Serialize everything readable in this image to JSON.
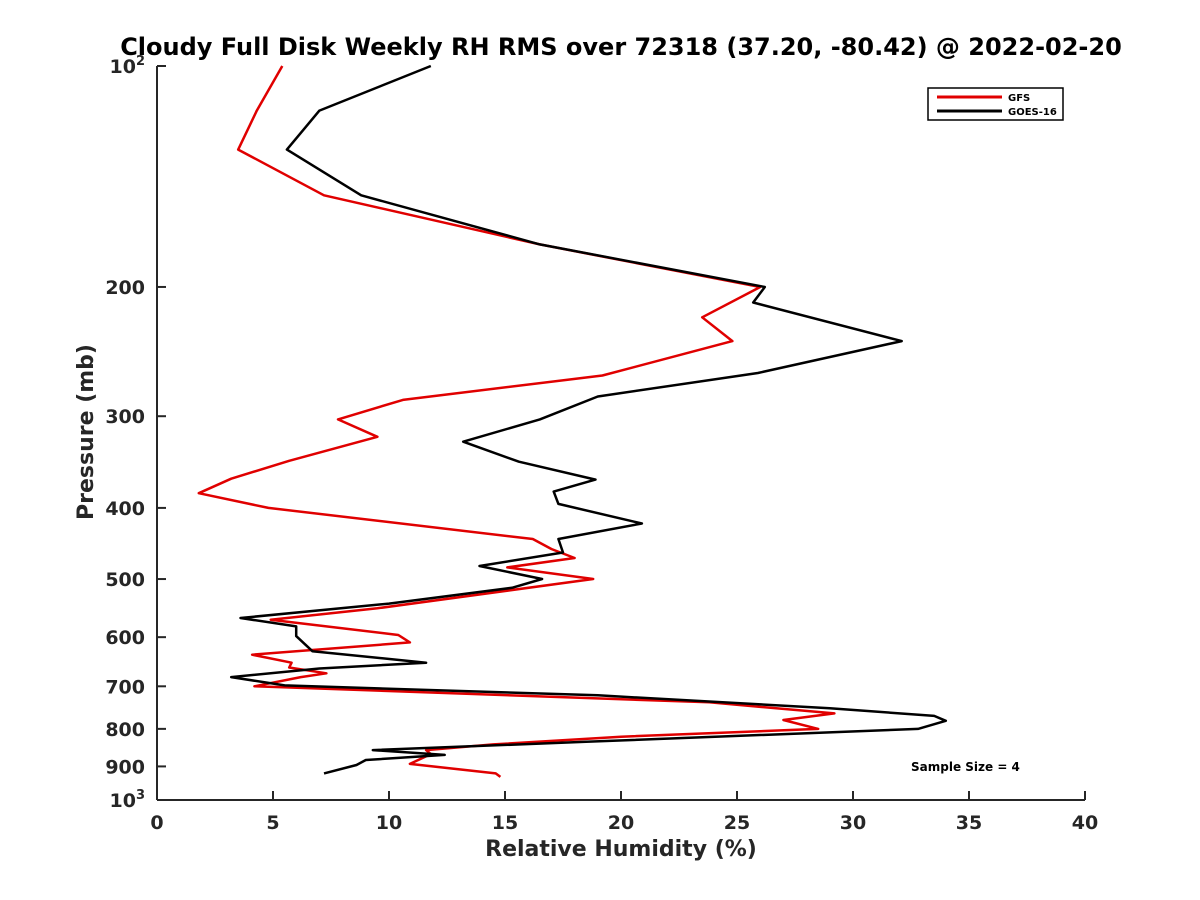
{
  "chart_data": {
    "type": "line",
    "title": "Cloudy Full Disk Weekly RH RMS over 72318 (37.20, -80.42) @ 2022-02-20",
    "xlabel": "Relative Humidity (%)",
    "ylabel": "Pressure (mb)",
    "xlim": [
      0,
      40
    ],
    "ylim": [
      100,
      1000
    ],
    "y_scale": "log",
    "y_reversed": true,
    "x_ticks": [
      0,
      5,
      10,
      15,
      20,
      25,
      30,
      35,
      40
    ],
    "x_tick_labels": [
      "0",
      "5",
      "10",
      "15",
      "20",
      "25",
      "30",
      "35",
      "40"
    ],
    "y_ticks": [
      {
        "value": 100,
        "label": "10",
        "sup": "2"
      },
      {
        "value": 200,
        "label": "200"
      },
      {
        "value": 300,
        "label": "300"
      },
      {
        "value": 400,
        "label": "400"
      },
      {
        "value": 500,
        "label": "500"
      },
      {
        "value": 600,
        "label": "600"
      },
      {
        "value": 700,
        "label": "700"
      },
      {
        "value": 800,
        "label": "800"
      },
      {
        "value": 900,
        "label": "900"
      },
      {
        "value": 1000,
        "label": "10",
        "sup": "3"
      }
    ],
    "legend_position": "top-right",
    "annotation": "Sample Size = 4",
    "series": [
      {
        "name": "GFS",
        "color": "#e00000",
        "points": [
          [
            5.4,
            100
          ],
          [
            4.3,
            115
          ],
          [
            3.5,
            130
          ],
          [
            7.2,
            150
          ],
          [
            16.5,
            175
          ],
          [
            26.0,
            200
          ],
          [
            23.5,
            220
          ],
          [
            24.8,
            237
          ],
          [
            19.2,
            264
          ],
          [
            10.6,
            285
          ],
          [
            7.8,
            303
          ],
          [
            9.5,
            320
          ],
          [
            5.7,
            345
          ],
          [
            3.2,
            365
          ],
          [
            1.8,
            382
          ],
          [
            4.8,
            400
          ],
          [
            16.2,
            441
          ],
          [
            17.0,
            455
          ],
          [
            18.0,
            468
          ],
          [
            15.1,
            482
          ],
          [
            18.8,
            500
          ],
          [
            9.5,
            548
          ],
          [
            4.9,
            568
          ],
          [
            10.4,
            596
          ],
          [
            10.9,
            610
          ],
          [
            4.1,
            634
          ],
          [
            5.8,
            650
          ],
          [
            5.7,
            660
          ],
          [
            7.3,
            672
          ],
          [
            6.2,
            680
          ],
          [
            4.2,
            700
          ],
          [
            23.8,
            736
          ],
          [
            29.2,
            762
          ],
          [
            27.0,
            778
          ],
          [
            28.5,
            800
          ],
          [
            20.0,
            820
          ],
          [
            14.5,
            840
          ],
          [
            11.6,
            855
          ],
          [
            11.8,
            866
          ],
          [
            10.9,
            893
          ],
          [
            14.6,
            920
          ],
          [
            14.8,
            930
          ]
        ]
      },
      {
        "name": "GOES-16",
        "color": "#000000",
        "points": [
          [
            11.8,
            100
          ],
          [
            7.0,
            115
          ],
          [
            5.6,
            130
          ],
          [
            8.8,
            150
          ],
          [
            16.5,
            175
          ],
          [
            26.2,
            200
          ],
          [
            25.7,
            210
          ],
          [
            32.1,
            237
          ],
          [
            25.9,
            262
          ],
          [
            19.0,
            282
          ],
          [
            16.5,
            303
          ],
          [
            13.2,
            325
          ],
          [
            15.6,
            346
          ],
          [
            18.9,
            366
          ],
          [
            17.1,
            380
          ],
          [
            17.3,
            395
          ],
          [
            20.9,
            420
          ],
          [
            17.3,
            441
          ],
          [
            17.5,
            460
          ],
          [
            13.9,
            480
          ],
          [
            16.6,
            500
          ],
          [
            15.3,
            514
          ],
          [
            10.0,
            540
          ],
          [
            3.6,
            565
          ],
          [
            6.0,
            580
          ],
          [
            6.0,
            598
          ],
          [
            6.7,
            627
          ],
          [
            11.6,
            650
          ],
          [
            7.0,
            662
          ],
          [
            3.2,
            680
          ],
          [
            5.5,
            698
          ],
          [
            19.0,
            720
          ],
          [
            29.0,
            750
          ],
          [
            33.5,
            768
          ],
          [
            34.0,
            780
          ],
          [
            32.8,
            800
          ],
          [
            18.5,
            833
          ],
          [
            9.3,
            855
          ],
          [
            12.4,
            868
          ],
          [
            9.0,
            882
          ],
          [
            8.6,
            896
          ],
          [
            7.2,
            920
          ]
        ]
      }
    ]
  }
}
